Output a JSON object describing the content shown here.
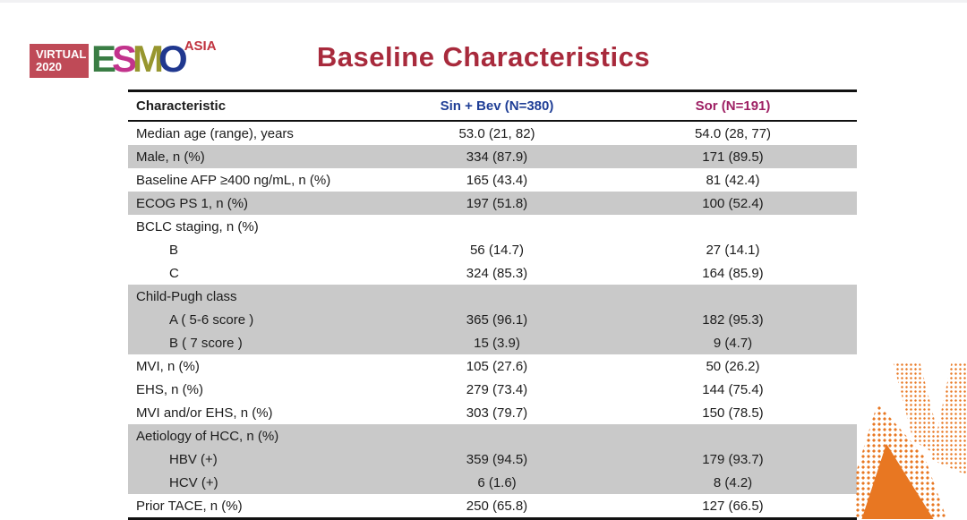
{
  "slide": {
    "title": "Baseline Characteristics"
  },
  "logo": {
    "virtual": "VIRTUAL",
    "year": "2020",
    "letter_e": "E",
    "letter_s": "S",
    "letter_m": "M",
    "letter_o": "O",
    "asia": "ASIA"
  },
  "colors": {
    "title_red": "#a82a3c",
    "arm1_blue": "#1f3e96",
    "arm2_magenta": "#9e2064",
    "row_gray": "#c9c9c9",
    "decor_orange": "#e87722",
    "logo_box_red": "#bf4a57",
    "logo_e_green": "#3a7d44",
    "logo_s_magenta": "#c2338c",
    "logo_m_olive": "#97962f",
    "logo_o_blue": "#20388f"
  },
  "table": {
    "headers": {
      "characteristic": "Characteristic",
      "arm1": "Sin + Bev (N=380)",
      "arm2": "Sor (N=191)"
    },
    "rows": [
      {
        "label": "Median age (range), years",
        "arm1": "53.0 (21, 82)",
        "arm2": "54.0 (28, 77)"
      },
      {
        "label": "Male, n (%)",
        "arm1": "334 (87.9)",
        "arm2": "171 (89.5)"
      },
      {
        "label": "Baseline AFP ≥400 ng/mL, n (%)",
        "arm1": "165 (43.4)",
        "arm2": "81 (42.4)"
      },
      {
        "label": "ECOG PS 1, n (%)",
        "arm1": "197 (51.8)",
        "arm2": "100 (52.4)"
      },
      {
        "label": "BCLC staging, n (%)",
        "arm1": "",
        "arm2": ""
      },
      {
        "label": "B",
        "arm1": "56 (14.7)",
        "arm2": "27 (14.1)"
      },
      {
        "label": "C",
        "arm1": "324 (85.3)",
        "arm2": "164 (85.9)"
      },
      {
        "label": "Child-Pugh class",
        "arm1": "",
        "arm2": ""
      },
      {
        "label": "A ( 5-6 score )",
        "arm1": "365 (96.1)",
        "arm2": "182 (95.3)"
      },
      {
        "label": "B ( 7 score )",
        "arm1": "15 (3.9)",
        "arm2": "9 (4.7)"
      },
      {
        "label": "MVI, n (%)",
        "arm1": "105 (27.6)",
        "arm2": "50 (26.2)"
      },
      {
        "label": "EHS, n (%)",
        "arm1": "279 (73.4)",
        "arm2": "144 (75.4)"
      },
      {
        "label": "MVI and/or EHS, n (%)",
        "arm1": "303 (79.7)",
        "arm2": "150 (78.5)"
      },
      {
        "label": "Aetiology of HCC, n (%)",
        "arm1": "",
        "arm2": ""
      },
      {
        "label": "HBV (+)",
        "arm1": "359 (94.5)",
        "arm2": "179 (93.7)"
      },
      {
        "label": "HCV (+)",
        "arm1": "6 (1.6)",
        "arm2": "8 (4.2)"
      },
      {
        "label": "Prior TACE, n (%)",
        "arm1": "250 (65.8)",
        "arm2": "127 (66.5)"
      }
    ]
  }
}
